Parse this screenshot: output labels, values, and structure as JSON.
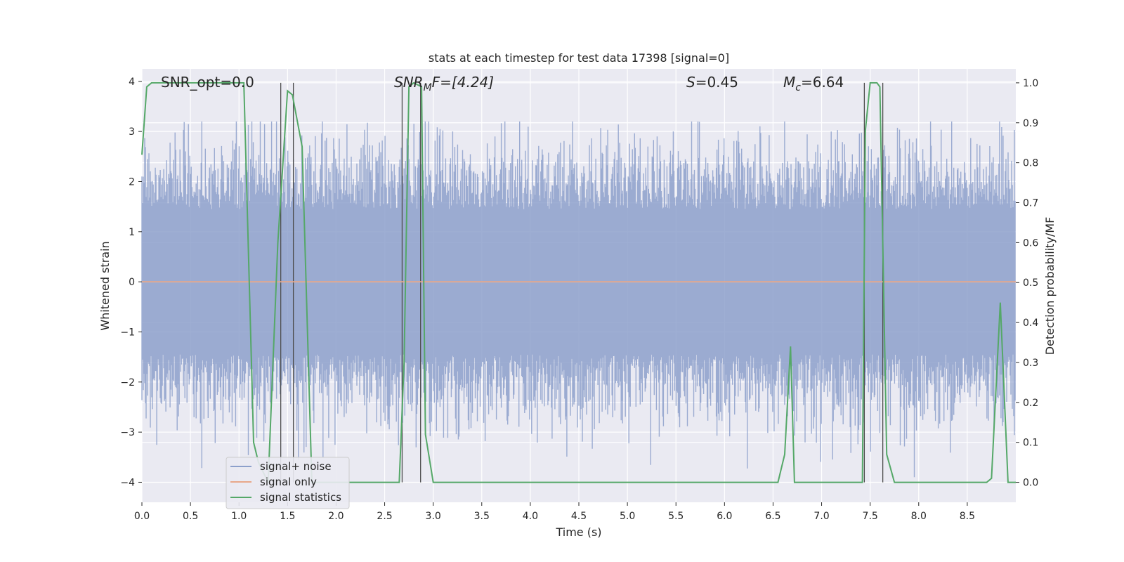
{
  "chart_data": {
    "type": "line",
    "title": "stats at each timestep for test data 17398 [signal=0]",
    "xlabel": "Time (s)",
    "ylabel_left": "Whitened strain",
    "ylabel_right": "Detection probability/MF",
    "xlim": [
      0.0,
      9.0
    ],
    "ylim_left": [
      -4.4,
      4.25
    ],
    "ylim_right": [
      -0.05,
      1.035
    ],
    "x_ticks": [
      "0.0",
      "0.5",
      "1.0",
      "1.5",
      "2.0",
      "2.5",
      "3.0",
      "3.5",
      "4.0",
      "4.5",
      "5.0",
      "5.5",
      "6.0",
      "6.5",
      "7.0",
      "7.5",
      "8.0",
      "8.5"
    ],
    "y_ticks_left": [
      "4",
      "3",
      "2",
      "1",
      "0",
      "−1",
      "−2",
      "−3",
      "−4"
    ],
    "y_ticks_right": [
      "1.0",
      "0.9",
      "0.8",
      "0.7",
      "0.6",
      "0.5",
      "0.4",
      "0.3",
      "0.2",
      "0.1",
      "0.0"
    ],
    "grid": true,
    "annotations": [
      {
        "id": "snr-opt",
        "html": "SNR_opt=0.0"
      },
      {
        "id": "snr-mf",
        "html": "SNR<tspan font-size='14' dy='5' font-style='italic'>M</tspan><tspan dy='-5' font-style='italic'>F</tspan>=[4.24]"
      },
      {
        "id": "s",
        "html": "<tspan font-style='italic'>S</tspan>=0.45"
      },
      {
        "id": "mc",
        "html": "<tspan font-style='italic'>M</tspan><tspan font-size='14' dy='5' font-style='italic'>c</tspan><tspan dy='-5'>=6.64</tspan>"
      }
    ],
    "legend": {
      "position": "lower-left",
      "entries": [
        {
          "label": "signal+ noise",
          "color": "#8da0cb"
        },
        {
          "label": "signal only",
          "color": "#e8a88a"
        },
        {
          "label": "signal statistics",
          "color": "#55a868"
        }
      ]
    },
    "series": [
      {
        "name": "signal+ noise",
        "axis": "left",
        "kind": "noise",
        "x_range": [
          0.0,
          9.0
        ],
        "amplitude_band": [
          -2.0,
          2.5
        ],
        "peak_range": [
          -3.9,
          3.2
        ],
        "color": "#8da0cb"
      },
      {
        "name": "signal only",
        "axis": "left",
        "x": [
          0.0,
          9.0
        ],
        "y": [
          0.0,
          0.0
        ],
        "color": "#e8a88a"
      },
      {
        "name": "signal statistics",
        "axis": "right",
        "color": "#55a868",
        "x": [
          0.0,
          0.05,
          0.1,
          0.2,
          1.0,
          1.05,
          1.15,
          1.2,
          1.3,
          1.4,
          1.5,
          1.55,
          1.65,
          1.75,
          1.85,
          2.65,
          2.7,
          2.75,
          2.8,
          2.88,
          2.92,
          3.0,
          6.55,
          6.62,
          6.68,
          6.72,
          7.42,
          7.45,
          7.5,
          7.57,
          7.6,
          7.67,
          7.75,
          8.7,
          8.75,
          8.84,
          8.92,
          9.0
        ],
        "y": [
          0.82,
          0.99,
          1.0,
          1.0,
          1.0,
          1.0,
          0.1,
          0.05,
          0.0,
          0.6,
          0.98,
          0.97,
          0.84,
          0.0,
          0.0,
          0.0,
          0.3,
          0.99,
          1.0,
          0.99,
          0.12,
          0.0,
          0.0,
          0.07,
          0.34,
          0.0,
          0.0,
          0.88,
          1.0,
          1.0,
          0.99,
          0.07,
          0.0,
          0.0,
          0.01,
          0.45,
          0.0,
          0.0
        ]
      }
    ],
    "vertical_markers_x": [
      1.43,
      1.56,
      2.68,
      2.87,
      7.44,
      7.63
    ],
    "vertical_marker_range_right": [
      0.0,
      1.0
    ]
  }
}
